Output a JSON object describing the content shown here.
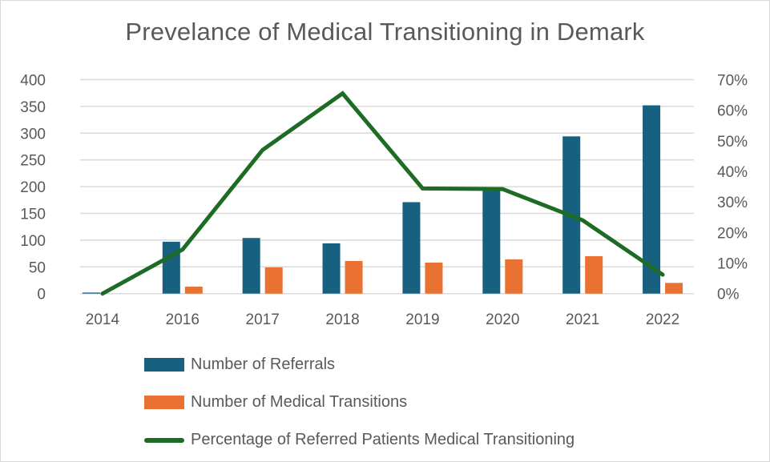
{
  "chart_data": {
    "type": "bar",
    "title": "Prevelance of Medical Transitioning in Demark",
    "xlabel": "",
    "ylabel": "",
    "y2label": "",
    "categories": [
      "2014",
      "2016",
      "2017",
      "2018",
      "2019",
      "2020",
      "2021",
      "2022"
    ],
    "series": [
      {
        "name": "Number of Referrals",
        "type": "bar",
        "axis": "left",
        "color": "#17607f",
        "values": [
          2,
          97,
          104,
          94,
          171,
          196,
          294,
          352
        ]
      },
      {
        "name": "Number of Medical Transitions",
        "type": "bar",
        "axis": "left",
        "color": "#e97132",
        "values": [
          0,
          13,
          49,
          61,
          58,
          64,
          70,
          20
        ]
      },
      {
        "name": "Percentage of Referred Patients Medical Transitioning",
        "type": "line",
        "axis": "right",
        "color": "#1d6b25",
        "values": [
          0,
          0.144,
          0.47,
          0.655,
          0.344,
          0.342,
          0.24,
          0.062
        ]
      }
    ],
    "ylim": [
      0,
      400
    ],
    "yticks": [
      "0",
      "50",
      "100",
      "150",
      "200",
      "250",
      "300",
      "350",
      "400"
    ],
    "y2lim": [
      0,
      0.7
    ],
    "y2ticks": [
      "0%",
      "10%",
      "20%",
      "30%",
      "40%",
      "50%",
      "60%",
      "70%"
    ],
    "grid": true,
    "legend_position": "bottom"
  }
}
